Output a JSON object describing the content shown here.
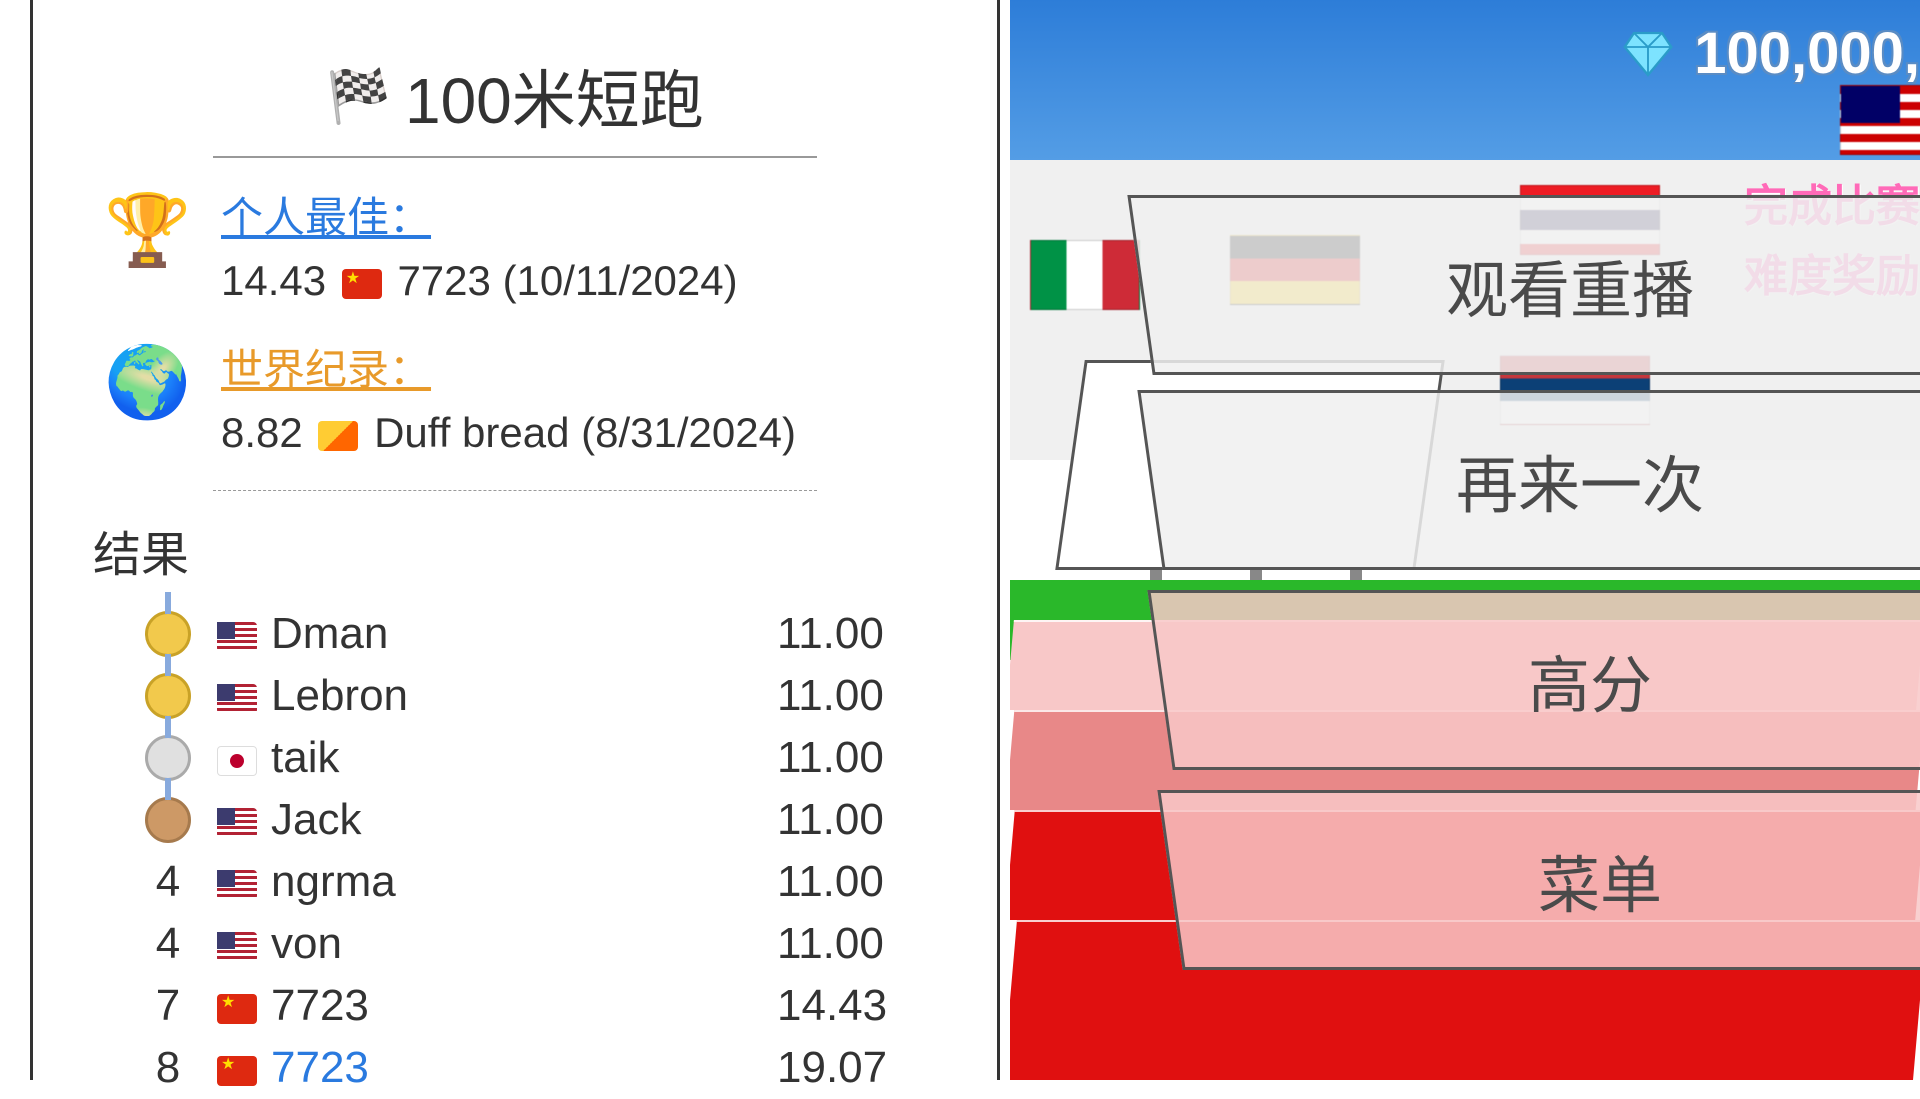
{
  "title": "100米短跑",
  "personal_best": {
    "label": "个人最佳：",
    "time": "14.43",
    "flag": "cn",
    "player": "7723",
    "date": "(10/11/2024)"
  },
  "world_record": {
    "label": "世界纪录：",
    "time": "8.82",
    "flag": "bt",
    "player": "Duff bread",
    "date": "(8/31/2024)"
  },
  "results_label": "结果",
  "results": [
    {
      "rank_type": "gold",
      "rank": "",
      "flag": "us",
      "name": "Dman",
      "time": "11.00",
      "highlight": false
    },
    {
      "rank_type": "gold",
      "rank": "",
      "flag": "us",
      "name": "Lebron",
      "time": "11.00",
      "highlight": false
    },
    {
      "rank_type": "silver",
      "rank": "",
      "flag": "jp",
      "name": "taik",
      "time": "11.00",
      "highlight": false
    },
    {
      "rank_type": "bronze",
      "rank": "",
      "flag": "us",
      "name": "Jack",
      "time": "11.00",
      "highlight": false
    },
    {
      "rank_type": "num",
      "rank": "4",
      "flag": "us",
      "name": "ngrma",
      "time": "11.00",
      "highlight": false
    },
    {
      "rank_type": "num",
      "rank": "4",
      "flag": "us",
      "name": "von",
      "time": "11.00",
      "highlight": false
    },
    {
      "rank_type": "num",
      "rank": "7",
      "flag": "cn",
      "name": "7723",
      "time": "14.43",
      "highlight": false
    },
    {
      "rank_type": "num",
      "rank": "8",
      "flag": "cn",
      "name": "7723",
      "time": "19.07",
      "highlight": true
    }
  ],
  "currency": "100,000,",
  "pink_label_1": "完成比赛",
  "pink_label_2": "难度奖励",
  "menu": {
    "replay": "观看重播",
    "retry": "再来一次",
    "highscore": "高分",
    "main_menu": "菜单"
  },
  "colors": {
    "sky_top": "#2d7dd8",
    "sky_bottom": "#9fc9f2",
    "grass": "#2ab82a",
    "track_light": "#f8c8c8",
    "track_dark": "#e01010",
    "pb_color": "#2a7adf",
    "wr_color": "#e89a2a",
    "pink": "#ff6ab8"
  }
}
